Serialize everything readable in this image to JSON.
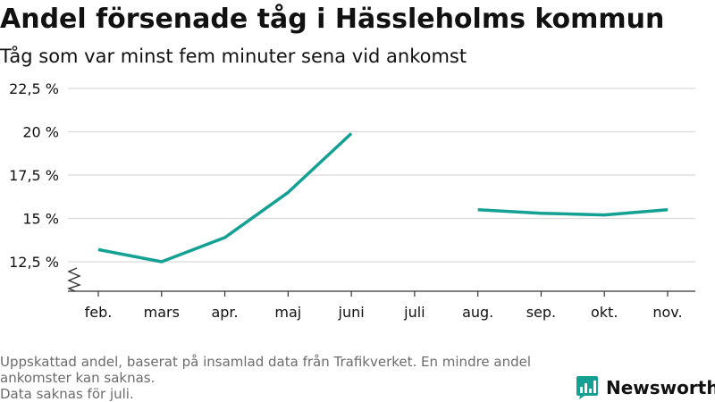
{
  "header": {
    "title": "Andel försenade tåg i Hässleholms kommun",
    "subtitle": "Tåg som var minst fem minuter sena vid ankomst"
  },
  "footer": {
    "note_lines": [
      "Uppskattad andel, baserat på insamlad data från Trafikverket. En mindre andel ankomster kan saknas.",
      "Data saknas för juli."
    ],
    "brand": "Newsworthy"
  },
  "colors": {
    "line": "#14a093",
    "grid": "#d9d9d9",
    "axis": "#333333",
    "text": "#111111",
    "muted": "#6b6b6b",
    "brand": "#14a093"
  },
  "icons": {
    "axis_break": "axis-break-icon",
    "logo": "newsworthy-logo-icon"
  },
  "chart_data": {
    "type": "line",
    "title": "Andel försenade tåg i Hässleholms kommun",
    "subtitle": "Tåg som var minst fem minuter sena vid ankomst",
    "categories": [
      "feb.",
      "mars",
      "apr.",
      "maj",
      "juni",
      "juli",
      "aug.",
      "sep.",
      "okt.",
      "nov."
    ],
    "series": [
      {
        "values": [
          13.2,
          12.5,
          13.9,
          16.5,
          19.9,
          null,
          15.5,
          15.3,
          15.2,
          15.5
        ]
      }
    ],
    "y_ticks": [
      12.5,
      15,
      17.5,
      20,
      22.5
    ],
    "y_tick_labels": [
      "12,5 %",
      "15 %",
      "17,5 %",
      "20 %",
      "22,5 %"
    ],
    "ylim": [
      10.8,
      22.5
    ],
    "grid": true,
    "y_axis_break": true,
    "legend": "none"
  }
}
